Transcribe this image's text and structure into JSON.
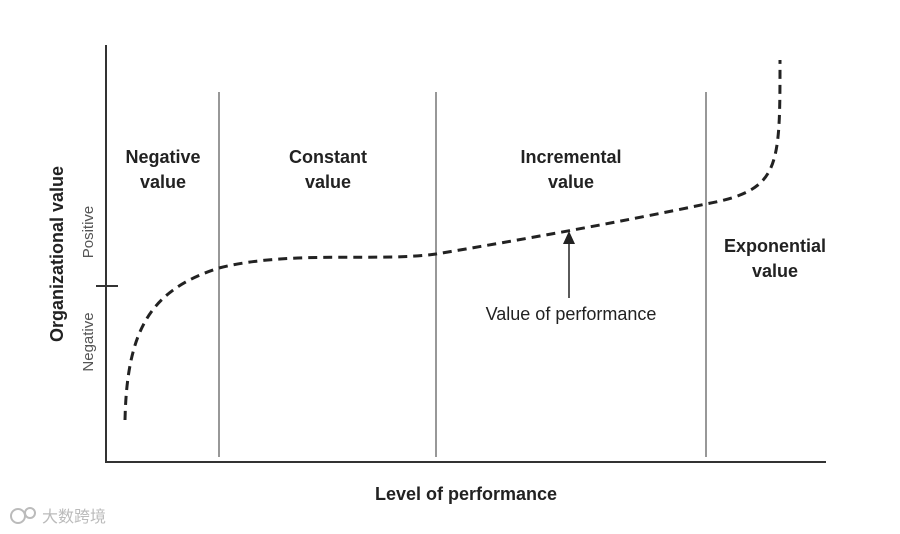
{
  "diagram": {
    "y_axis_label": "Organizational value",
    "y_axis_positive": "Positive",
    "y_axis_negative": "Negative",
    "x_axis_label": "Level of performance",
    "regions": [
      {
        "lines": [
          "Negative",
          "value"
        ]
      },
      {
        "lines": [
          "Constant",
          "value"
        ]
      },
      {
        "lines": [
          "Incremental",
          "value"
        ]
      },
      {
        "lines": [
          "Exponential",
          "value"
        ]
      }
    ],
    "curve_label": "Value of performance",
    "watermark": "大数跨境"
  }
}
